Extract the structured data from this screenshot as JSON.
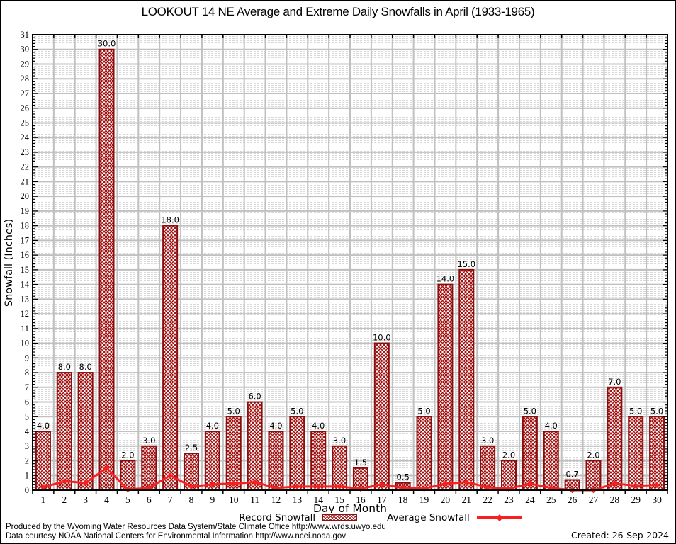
{
  "title": "LOOKOUT 14 NE Average and Extreme Daily Snowfalls in April (1933-1965)",
  "chart_data": {
    "type": "bar",
    "categories": [
      1,
      2,
      3,
      4,
      5,
      6,
      7,
      8,
      9,
      10,
      11,
      12,
      13,
      14,
      15,
      16,
      17,
      18,
      19,
      20,
      21,
      22,
      23,
      24,
      25,
      26,
      27,
      28,
      29,
      30
    ],
    "series": [
      {
        "name": "Record Snowfall",
        "type": "bar",
        "values": [
          4.0,
          8.0,
          8.0,
          30.0,
          2.0,
          3.0,
          18.0,
          2.5,
          4.0,
          5.0,
          6.0,
          4.0,
          5.0,
          4.0,
          3.0,
          1.5,
          10.0,
          0.5,
          5.0,
          14.0,
          15.0,
          3.0,
          2.0,
          5.0,
          4.0,
          0.7,
          2.0,
          7.0,
          5.0,
          5.0
        ],
        "bar_labels": [
          "4.0",
          "8.0",
          "8.0",
          "30.0",
          "2.0",
          "3.0",
          "18.0",
          "2.5",
          "4.0",
          "5.0",
          "6.0",
          "4.0",
          "5.0",
          "4.0",
          "3.0",
          "1.5",
          "10.0",
          "0.5",
          "5.0",
          "14.0",
          "15.0",
          "3.0",
          "2.0",
          "5.0",
          "4.0",
          "0.7",
          "2.0",
          "7.0",
          "5.0",
          "5.0"
        ]
      },
      {
        "name": "Average Snowfall",
        "type": "line",
        "values": [
          0.2,
          0.6,
          0.5,
          1.5,
          0.05,
          0.15,
          1.0,
          0.25,
          0.4,
          0.45,
          0.55,
          0.15,
          0.25,
          0.25,
          0.25,
          0.1,
          0.4,
          0.15,
          0.1,
          0.45,
          0.55,
          0.2,
          0.1,
          0.45,
          0.15,
          0.0,
          0.0,
          0.45,
          0.3,
          0.35
        ]
      }
    ],
    "xlabel": "Day of Month",
    "ylabel": "Snowfall (Inches)",
    "ylim": [
      0,
      31
    ],
    "ytick_step": 1,
    "grid": true,
    "legend_position": "bottom",
    "colors": {
      "bar_hatch": "#a01212",
      "bar_border": "#8b0e0e",
      "average_line": "#f91f1f",
      "gridline": "#c0c0c0",
      "grid_texture": "#d8d8d8",
      "axis": "#000000",
      "label_text": "#000000"
    }
  },
  "legend": {
    "record_label": "Record Snowfall",
    "average_label": "Average Snowfall"
  },
  "footer": {
    "line1": "Produced by the Wyoming Water Resources Data System/State Climate Office http://www.wrds.uwyo.edu",
    "line2": "Data courtesy NOAA National Centers for Environmental Information http://www.ncei.noaa.gov",
    "created": "Created: 26-Sep-2024"
  }
}
